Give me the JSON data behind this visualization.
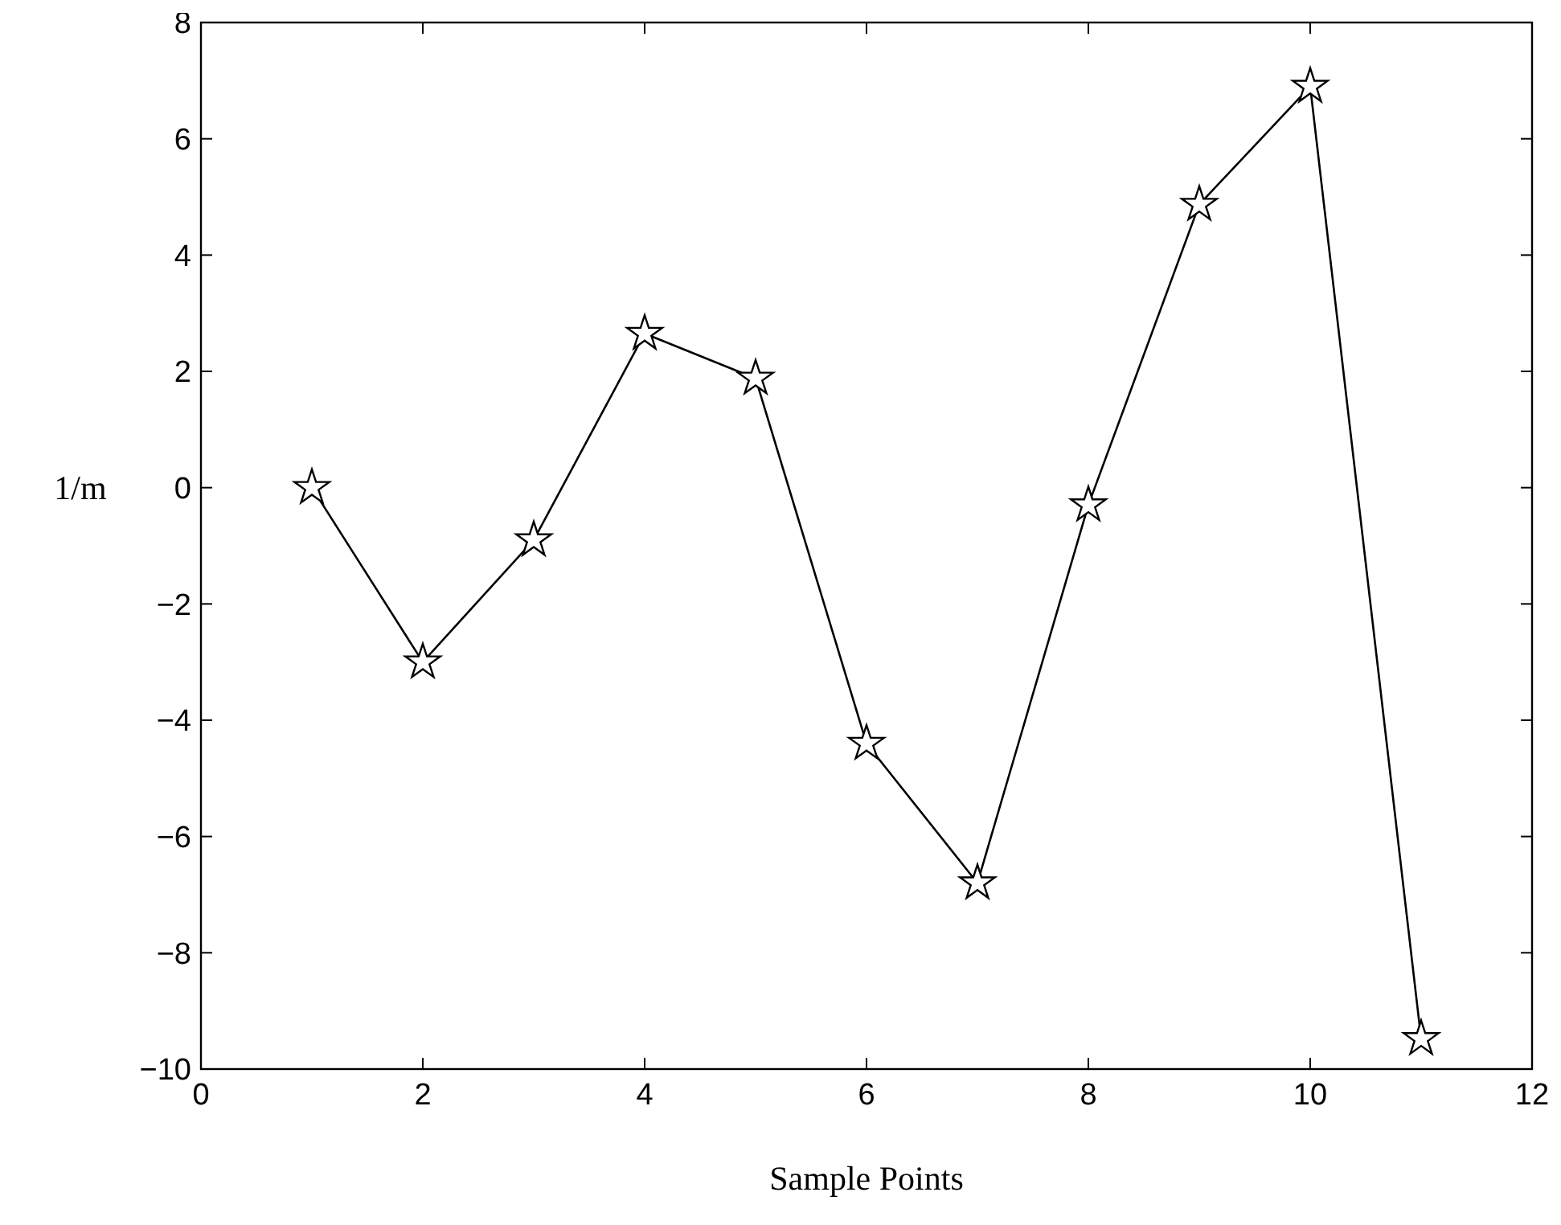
{
  "chart_data": {
    "type": "line",
    "xlabel": "Sample Points",
    "ylabel": "1/m",
    "x": [
      1,
      2,
      3,
      4,
      5,
      6,
      7,
      8,
      9,
      10,
      11
    ],
    "series": [
      {
        "color": "#000000",
        "values": [
          0.0,
          -3.0,
          -0.9,
          2.65,
          1.88,
          -4.4,
          -6.8,
          -0.3,
          4.87,
          6.9,
          -9.48
        ]
      }
    ],
    "xlim": [
      0,
      12
    ],
    "xticks": [
      0,
      2,
      4,
      6,
      8,
      10,
      12
    ],
    "ylim": [
      -10,
      8
    ],
    "yticks": [
      -10,
      -8,
      -6,
      -4,
      -2,
      0,
      2,
      4,
      6,
      8
    ],
    "marker": "star",
    "line_style": "solid",
    "grid": false
  }
}
